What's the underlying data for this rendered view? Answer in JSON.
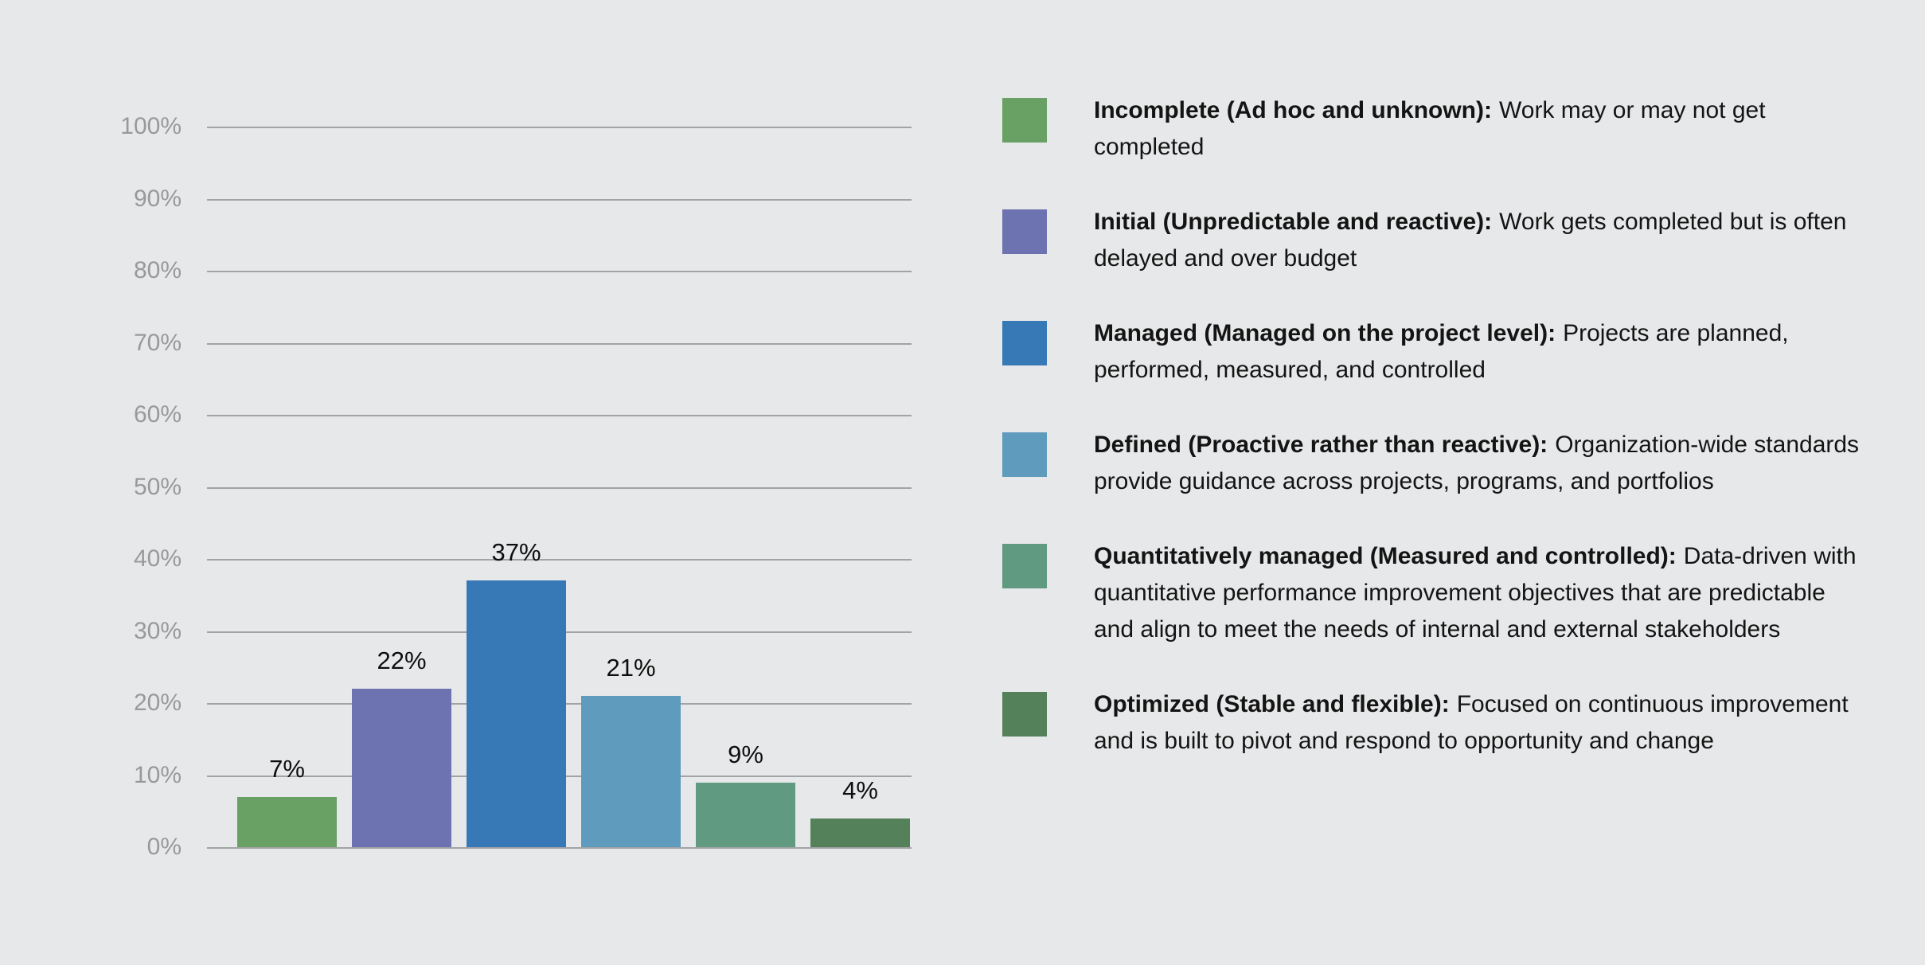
{
  "chart_data": {
    "type": "bar",
    "title": "",
    "categories": [
      "Incomplete",
      "Initial",
      "Managed",
      "Defined",
      "Quantitatively managed",
      "Optimized"
    ],
    "values": [
      7,
      22,
      37,
      21,
      9,
      4
    ],
    "value_labels": [
      "7%",
      "22%",
      "37%",
      "21%",
      "9%",
      "4%"
    ],
    "colors": [
      "#69a063",
      "#6d73b1",
      "#3779b6",
      "#5e9bbc",
      "#5f9a81",
      "#54805a"
    ],
    "y_ticks_top_to_bottom": [
      "100%",
      "90%",
      "80%",
      "70%",
      "60%",
      "50%",
      "40%",
      "30%",
      "20%",
      "10%",
      "0%"
    ],
    "ylim": [
      0,
      100
    ],
    "grid": true,
    "legend_position": "right",
    "xlabel": "",
    "ylabel": ""
  },
  "legend": {
    "items": [
      {
        "term": "Incomplete (Ad hoc and unknown):",
        "description": "Work may or may not get completed"
      },
      {
        "term": "Initial (Unpredictable and reactive):",
        "description": "Work gets completed but is often delayed and over budget"
      },
      {
        "term": "Managed (Managed on the project level):",
        "description": "Projects are planned, performed, measured, and controlled"
      },
      {
        "term": "Defined (Proactive rather than reactive):",
        "description": "Organization-wide standards provide guidance across projects, programs, and portfolios"
      },
      {
        "term": "Quantitatively managed (Measured and controlled):",
        "description": "Data-driven with quantitative performance improvement objectives that are predictable and align to meet the needs of internal and external stakeholders"
      },
      {
        "term": "Optimized (Stable and flexible):",
        "description": "Focused on continuous improvement and is built to pivot and respond to opportunity and change"
      }
    ]
  },
  "colors": {
    "background": "#e7e8e9",
    "gridline": "#a2a3a5",
    "tick_label": "#98999b",
    "data_label": "#0e0e0e",
    "legend_text": "#141414"
  }
}
